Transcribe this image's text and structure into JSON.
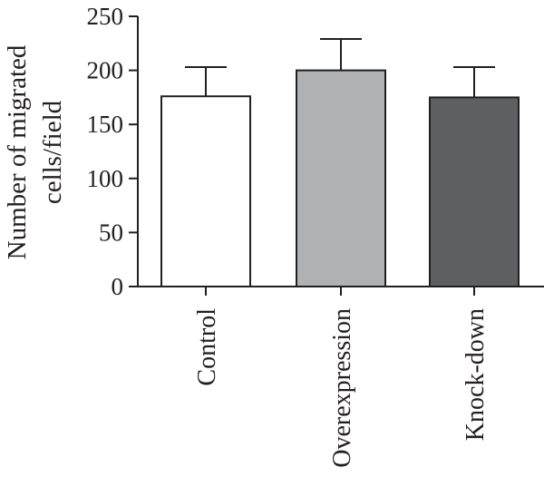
{
  "chart_data": {
    "type": "bar",
    "categories": [
      "Control",
      "Overexpression",
      "Knock-down"
    ],
    "values": [
      176,
      200,
      175
    ],
    "errors_upper": [
      203,
      229,
      203
    ],
    "colors": [
      "#ffffff",
      "#b0b1b3",
      "#5e5f61"
    ],
    "ylabel_lines": [
      "Number of migrated",
      "cells/field"
    ],
    "xlabel": "",
    "ylim": [
      0,
      250
    ],
    "yticks": [
      0,
      50,
      100,
      150,
      200,
      250
    ],
    "grid": false,
    "legend": "none"
  },
  "style": {
    "axis_color": "#231f20"
  }
}
